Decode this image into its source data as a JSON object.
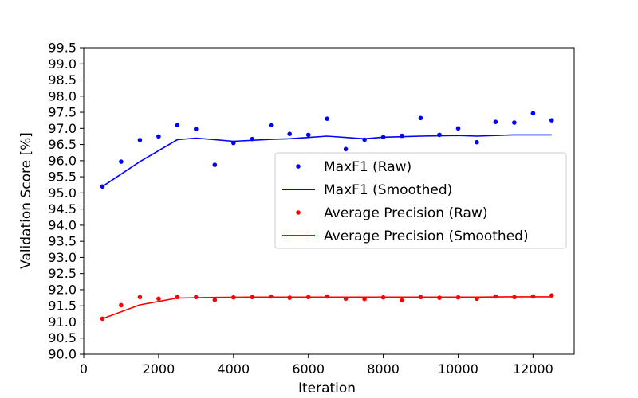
{
  "chart_data": {
    "type": "line",
    "xlabel": "Iteration",
    "ylabel": "Validation Score [%]",
    "xlim": [
      0,
      13100
    ],
    "ylim": [
      90.0,
      99.5
    ],
    "xticks": [
      0,
      2000,
      4000,
      6000,
      8000,
      10000,
      12000
    ],
    "xtick_labels": [
      "0",
      "2000",
      "4000",
      "6000",
      "8000",
      "10000",
      "12000"
    ],
    "yticks": [
      90.0,
      90.5,
      91.0,
      91.5,
      92.0,
      92.5,
      93.0,
      93.5,
      94.0,
      94.5,
      95.0,
      95.5,
      96.0,
      96.5,
      97.0,
      97.5,
      98.0,
      98.5,
      99.0,
      99.5
    ],
    "ytick_labels": [
      "90.0",
      "90.5",
      "91.0",
      "91.5",
      "92.0",
      "92.5",
      "93.0",
      "93.5",
      "94.0",
      "94.5",
      "95.0",
      "95.5",
      "96.0",
      "96.5",
      "97.0",
      "97.5",
      "98.0",
      "98.5",
      "99.0",
      "99.5"
    ],
    "grid": false,
    "legend_position": "center-right",
    "series": [
      {
        "name": "MaxF1 (Raw)",
        "style": "scatter",
        "color": "#0000ff",
        "x": [
          500,
          1000,
          1500,
          2000,
          2500,
          3000,
          3500,
          4000,
          4500,
          5000,
          5500,
          6000,
          6500,
          7000,
          7500,
          8000,
          8500,
          9000,
          9500,
          10000,
          10500,
          11000,
          11500,
          12000,
          12500
        ],
        "y": [
          95.2,
          95.97,
          96.64,
          96.75,
          97.1,
          96.98,
          95.87,
          96.55,
          96.67,
          97.1,
          96.83,
          96.8,
          97.3,
          96.36,
          96.65,
          96.73,
          96.77,
          97.32,
          96.8,
          97.0,
          96.57,
          97.2,
          97.18,
          97.47,
          97.25
        ]
      },
      {
        "name": "MaxF1 (Smoothed)",
        "style": "line",
        "color": "#0000ff",
        "x": [
          500,
          1500,
          2500,
          3000,
          4000,
          5000,
          5500,
          6500,
          7500,
          8000,
          9000,
          10000,
          10500,
          11500,
          12500
        ],
        "y": [
          95.2,
          95.97,
          96.65,
          96.7,
          96.6,
          96.66,
          96.68,
          96.76,
          96.68,
          96.73,
          96.76,
          96.78,
          96.76,
          96.8,
          96.8
        ]
      },
      {
        "name": "Average Precision (Raw)",
        "style": "scatter",
        "color": "#ff0000",
        "x": [
          500,
          1000,
          1500,
          2000,
          2500,
          3000,
          3500,
          4000,
          4500,
          5000,
          5500,
          6000,
          6500,
          7000,
          7500,
          8000,
          8500,
          9000,
          9500,
          10000,
          10500,
          11000,
          11500,
          12000,
          12500
        ],
        "y": [
          91.1,
          91.52,
          91.77,
          91.72,
          91.77,
          91.77,
          91.68,
          91.76,
          91.77,
          91.79,
          91.75,
          91.77,
          91.79,
          91.72,
          91.71,
          91.76,
          91.67,
          91.77,
          91.75,
          91.76,
          91.72,
          91.79,
          91.77,
          91.79,
          91.82
        ]
      },
      {
        "name": "Average Precision (Smoothed)",
        "style": "line",
        "color": "#ff0000",
        "x": [
          500,
          1500,
          2500,
          3500,
          4500,
          5500,
          6500,
          7500,
          8500,
          9500,
          10500,
          11500,
          12500
        ],
        "y": [
          91.1,
          91.53,
          91.74,
          91.76,
          91.77,
          91.77,
          91.77,
          91.77,
          91.77,
          91.77,
          91.77,
          91.78,
          91.78
        ]
      }
    ]
  }
}
